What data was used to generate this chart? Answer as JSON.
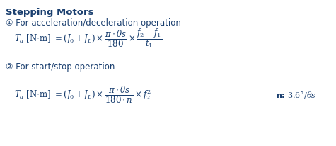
{
  "bg_color": "#ffffff",
  "text_color": "#1a3f6f",
  "title": "Stepping Motors",
  "label1": "① For acceleration/deceleration operation",
  "label2": "② For start/stop operation",
  "formula1": "$T_a$ [N·m] $= (J_0 + J_L) \\times \\dfrac{\\pi \\cdot \\theta s}{180} \\times \\dfrac{f_2 - f_1}{t_1}$",
  "formula2": "$T_a$ [N·m] $= (J_0 + J_L) \\times \\dfrac{\\pi \\cdot \\theta s}{180 \\cdot n} \\times f_2^2$",
  "note": "n: 3.6°/$\\theta$s",
  "title_fs": 9.5,
  "label_fs": 8.5,
  "formula_fs": 8.5,
  "note_fs": 8.0,
  "figsize": [
    4.75,
    2.06
  ],
  "dpi": 100
}
